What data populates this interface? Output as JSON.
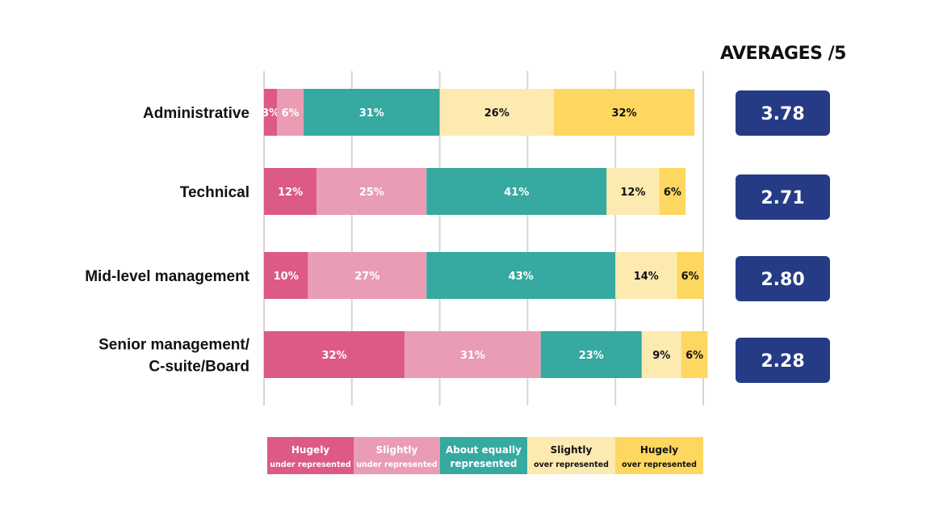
{
  "chart_data": {
    "type": "bar",
    "orientation": "horizontal",
    "stacked": true,
    "categories": [
      "Administrative",
      "Technical",
      "Mid-level management",
      "Senior management/\nC-suite/Board"
    ],
    "series": [
      {
        "name": "Hugely under represented",
        "values": [
          3,
          12,
          10,
          32
        ],
        "color": "#dc5a84",
        "label_color": "#ffffff"
      },
      {
        "name": "Slightly under represented",
        "values": [
          6,
          25,
          27,
          31
        ],
        "color": "#ea9cb4",
        "label_color": "#ffffff"
      },
      {
        "name": "About equally represented",
        "values": [
          31,
          41,
          43,
          23
        ],
        "color": "#36a9a0",
        "label_color": "#ffffff"
      },
      {
        "name": "Slightly over represented",
        "values": [
          26,
          12,
          14,
          9
        ],
        "color": "#fdeab1",
        "label_color": "#111111"
      },
      {
        "name": "Hugely over represented",
        "values": [
          32,
          6,
          6,
          6
        ],
        "color": "#fdd75f",
        "label_color": "#111111"
      }
    ],
    "value_suffix": "%",
    "xlim": [
      0,
      100
    ],
    "grid": true,
    "legend_position": "bottom",
    "legend_entries": [
      {
        "line1": "Hugely",
        "line2": "under represented"
      },
      {
        "line1": "Slightly",
        "line2": "under represented"
      },
      {
        "line1": "About equally",
        "line2": "represented"
      },
      {
        "line1": "Slightly",
        "line2": "over represented"
      },
      {
        "line1": "Hugely",
        "line2": "over represented"
      }
    ]
  },
  "averages": {
    "title": "AVERAGES /5",
    "values": [
      "3.78",
      "2.71",
      "2.80",
      "2.28"
    ],
    "box_color": "#263b86"
  }
}
